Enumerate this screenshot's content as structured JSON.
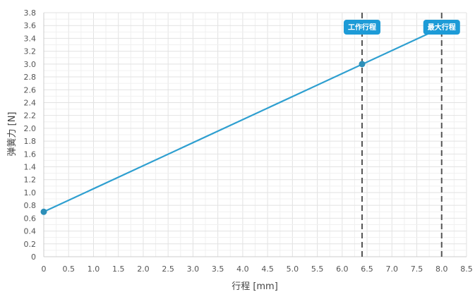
{
  "chart_data": {
    "type": "line",
    "title": "",
    "xlabel": "行程 [mm]",
    "ylabel": "弹簧力 [N]",
    "xlim": [
      0,
      8.5
    ],
    "ylim": [
      0,
      3.8
    ],
    "x_ticks": [
      "0",
      "0.5",
      "1.0",
      "1.5",
      "2.0",
      "2.5",
      "3.0",
      "3.5",
      "4.0",
      "4.5",
      "5.0",
      "5.5",
      "6.0",
      "6.5",
      "7.0",
      "7.5",
      "8.0",
      "8.5"
    ],
    "y_ticks": [
      "0",
      "0.2",
      "0.4",
      "0.6",
      "0.8",
      "1.0",
      "1.2",
      "1.4",
      "1.6",
      "1.8",
      "2.0",
      "2.2",
      "2.4",
      "2.6",
      "2.8",
      "3.0",
      "3.2",
      "3.4",
      "3.6",
      "3.8"
    ],
    "grid": true,
    "series": [
      {
        "color": "#2e9fd0",
        "points": [
          {
            "x": 0,
            "y": 0.7
          },
          {
            "x": 8.0,
            "y": 3.57
          }
        ],
        "markers": [
          {
            "x": 0,
            "y": 0.7
          },
          {
            "x": 6.4,
            "y": 3.0
          }
        ]
      }
    ],
    "annotations": [
      {
        "label": "工作行程",
        "x": 6.4,
        "line_color": "#555555",
        "badge_color": "#1d9bd7"
      },
      {
        "label": "最大行程",
        "x": 8.0,
        "line_color": "#555555",
        "badge_color": "#1d9bd7"
      }
    ]
  }
}
